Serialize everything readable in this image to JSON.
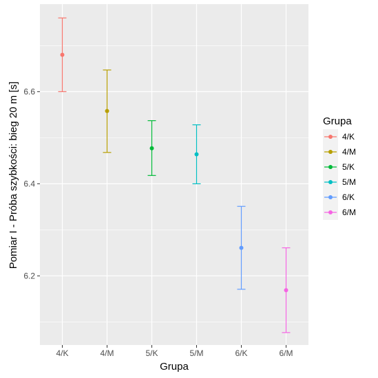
{
  "chart_data": {
    "type": "errorbar",
    "xlabel": "Grupa",
    "ylabel": "Pomiar I - Próba szybkości: bieg 20 m [s]",
    "categories": [
      "4/K",
      "4/M",
      "5/K",
      "5/M",
      "6/K",
      "6/M"
    ],
    "series": [
      {
        "name": "4/K",
        "color": "#F8766D",
        "mean": 6.68,
        "lower": 6.6,
        "upper": 6.76
      },
      {
        "name": "4/M",
        "color": "#B79F00",
        "mean": 6.558,
        "lower": 6.468,
        "upper": 6.647
      },
      {
        "name": "5/K",
        "color": "#00BA38",
        "mean": 6.477,
        "lower": 6.418,
        "upper": 6.537
      },
      {
        "name": "5/M",
        "color": "#00BFC4",
        "mean": 6.464,
        "lower": 6.4,
        "upper": 6.528
      },
      {
        "name": "6/K",
        "color": "#619CFF",
        "mean": 6.261,
        "lower": 6.171,
        "upper": 6.351
      },
      {
        "name": "6/M",
        "color": "#F564E3",
        "mean": 6.169,
        "lower": 6.077,
        "upper": 6.261
      }
    ],
    "yticks": [
      6.2,
      6.4,
      6.6
    ],
    "ytick_labels": [
      "6.2",
      "6.4",
      "6.6"
    ],
    "ylim": [
      6.05,
      6.79
    ],
    "grid": true,
    "legend": {
      "title": "Grupa",
      "position": "right"
    }
  }
}
